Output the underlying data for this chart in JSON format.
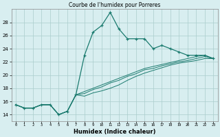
{
  "title": "Courbe de l'humidex pour Porreres",
  "xlabel": "Humidex (Indice chaleur)",
  "bg_color": "#d8eef0",
  "line_color": "#1a7a6e",
  "grid_color": "#aacccc",
  "xlim": [
    -0.5,
    23.5
  ],
  "ylim": [
    13.0,
    30.0
  ],
  "yticks": [
    14,
    16,
    18,
    20,
    22,
    24,
    26,
    28
  ],
  "xtick_labels": [
    "0",
    "1",
    "2",
    "3",
    "4",
    "5",
    "6",
    "7",
    "8",
    "9",
    "10",
    "11",
    "12",
    "13",
    "14",
    "15",
    "16",
    "17",
    "18",
    "19",
    "20",
    "21",
    "22",
    "23"
  ],
  "main_y": [
    15.5,
    15.0,
    15.0,
    15.5,
    15.5,
    14.0,
    14.5,
    17.0,
    23.0,
    26.5,
    27.5,
    29.5,
    27.0,
    25.5,
    25.5,
    25.5,
    24.0,
    24.5,
    24.0,
    23.5,
    23.0,
    23.0,
    23.0,
    22.5
  ],
  "line2_y": [
    15.5,
    15.0,
    15.0,
    15.5,
    15.5,
    14.0,
    14.5,
    17.0,
    17.5,
    18.0,
    18.5,
    19.0,
    19.5,
    20.0,
    20.5,
    21.0,
    21.3,
    21.6,
    21.9,
    22.2,
    22.5,
    22.8,
    23.0,
    22.5
  ],
  "line3_y": [
    15.5,
    15.0,
    15.0,
    15.5,
    15.5,
    14.0,
    14.5,
    17.0,
    17.2,
    17.8,
    18.2,
    18.8,
    19.2,
    19.8,
    20.2,
    20.8,
    21.0,
    21.4,
    21.7,
    22.0,
    22.2,
    22.5,
    22.8,
    22.5
  ],
  "line4_y": [
    15.5,
    15.0,
    15.0,
    15.5,
    15.5,
    14.0,
    14.5,
    17.0,
    16.8,
    17.3,
    17.6,
    18.0,
    18.5,
    19.2,
    19.8,
    20.3,
    20.7,
    21.1,
    21.5,
    21.8,
    22.0,
    22.2,
    22.5,
    22.5
  ]
}
